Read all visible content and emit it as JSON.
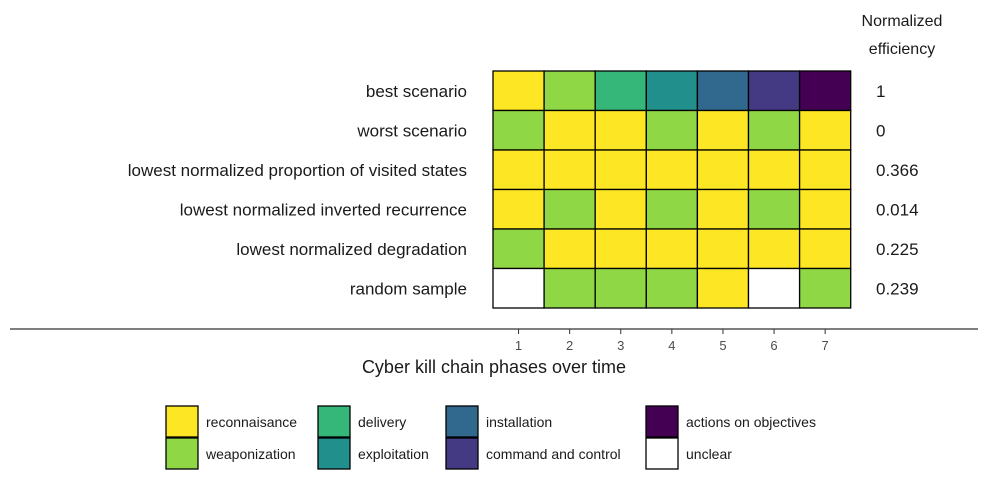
{
  "chart_data": {
    "type": "heatmap",
    "title": "",
    "xlabel": "Cyber kill chain phases over time",
    "x": [
      "1",
      "2",
      "3",
      "4",
      "5",
      "6",
      "7"
    ],
    "rows": [
      "best scenario",
      "worst scenario",
      "lowest normalized proportion of visited states",
      "lowest normalized inverted recurrence",
      "lowest normalized degradation",
      "random sample"
    ],
    "cells": [
      [
        "reconnaisance",
        "weaponization",
        "delivery",
        "exploitation",
        "installation",
        "command and control",
        "actions on objectives"
      ],
      [
        "weaponization",
        "reconnaisance",
        "reconnaisance",
        "weaponization",
        "reconnaisance",
        "weaponization",
        "reconnaisance"
      ],
      [
        "reconnaisance",
        "reconnaisance",
        "reconnaisance",
        "reconnaisance",
        "reconnaisance",
        "reconnaisance",
        "reconnaisance"
      ],
      [
        "reconnaisance",
        "weaponization",
        "reconnaisance",
        "weaponization",
        "reconnaisance",
        "weaponization",
        "reconnaisance"
      ],
      [
        "weaponization",
        "reconnaisance",
        "reconnaisance",
        "reconnaisance",
        "reconnaisance",
        "reconnaisance",
        "reconnaisance"
      ],
      [
        "unclear",
        "weaponization",
        "weaponization",
        "weaponization",
        "reconnaisance",
        "unclear",
        "weaponization"
      ]
    ],
    "efficiency_title": [
      "Normalized",
      "efficiency"
    ],
    "efficiency": [
      "1",
      "0",
      "0.366",
      "0.014",
      "0.225",
      "0.239"
    ],
    "categories": [
      {
        "name": "reconnaisance",
        "color": "#fde725"
      },
      {
        "name": "weaponization",
        "color": "#8fd744"
      },
      {
        "name": "delivery",
        "color": "#35b779"
      },
      {
        "name": "exploitation",
        "color": "#21908d"
      },
      {
        "name": "installation",
        "color": "#31688e"
      },
      {
        "name": "command and control",
        "color": "#443a83"
      },
      {
        "name": "actions on objectives",
        "color": "#440154"
      },
      {
        "name": "unclear",
        "color": "#ffffff"
      }
    ],
    "legend_position": "bottom"
  }
}
